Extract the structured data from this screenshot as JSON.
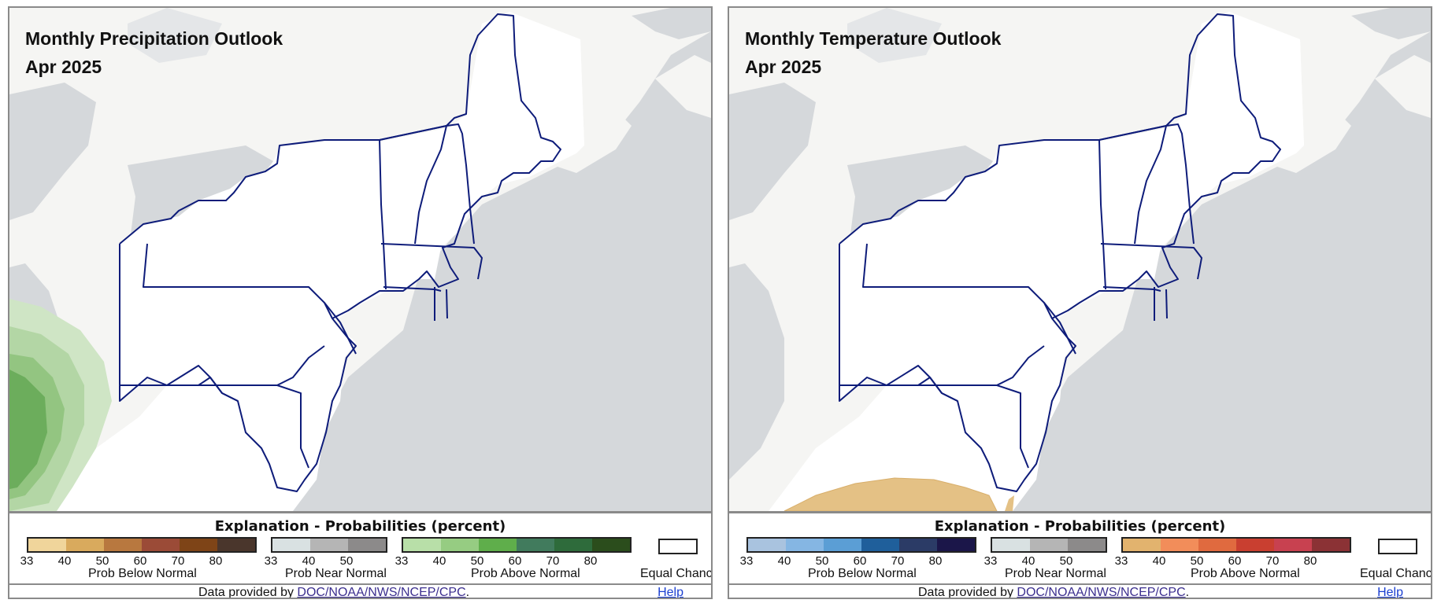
{
  "colors": {
    "land": "#ffffff",
    "canada_land": "#f5f5f3",
    "water": "#d5d8db",
    "state_lines": "#0e1c7a",
    "green_outer": "#cfe5c5",
    "green_mid": "#b3d6a5",
    "green_inner": "#93c581",
    "green_core": "#6cad5c",
    "tan": "#e4c185"
  },
  "legend_shared": {
    "title": "Explanation - Probabilities (percent)",
    "near_label": "Prob Near Normal",
    "near_ticks": [
      "33",
      "40",
      "50"
    ],
    "near_colors": [
      "#d9e1e2",
      "#b5b5b5",
      "#8c8a8a"
    ],
    "below_label": "Prob Below Normal",
    "above_label": "Prob Above Normal",
    "equal_chance_label": "Equal Chance",
    "scale_ticks": [
      "33",
      "40",
      "50",
      "60",
      "70",
      "80"
    ],
    "credit_prefix": "Data provided by ",
    "credit_link": "DOC/NOAA/NWS/NCEP/CPC",
    "credit_suffix": ".",
    "help": "Help"
  },
  "precip": {
    "title": "Monthly Precipitation Outlook",
    "month": "Apr 2025",
    "below_colors": [
      "#f0d59b",
      "#d9aa5d",
      "#b8783f",
      "#9b4b37",
      "#7e4417",
      "#4a362c"
    ],
    "above_colors": [
      "#b8dfa8",
      "#96cc82",
      "#5fae4b",
      "#417b5d",
      "#2e6b3b",
      "#2b4d1c"
    ]
  },
  "temp": {
    "title": "Monthly Temperature Outlook",
    "month": "Apr 2025",
    "below_colors": [
      "#a9c3df",
      "#85b6e3",
      "#5b9ed5",
      "#1f5f9b",
      "#2b3b66",
      "#1b1649"
    ],
    "above_colors": [
      "#e2b36e",
      "#f28d5a",
      "#e06a3f",
      "#c93f30",
      "#c84150",
      "#8b3235"
    ]
  }
}
